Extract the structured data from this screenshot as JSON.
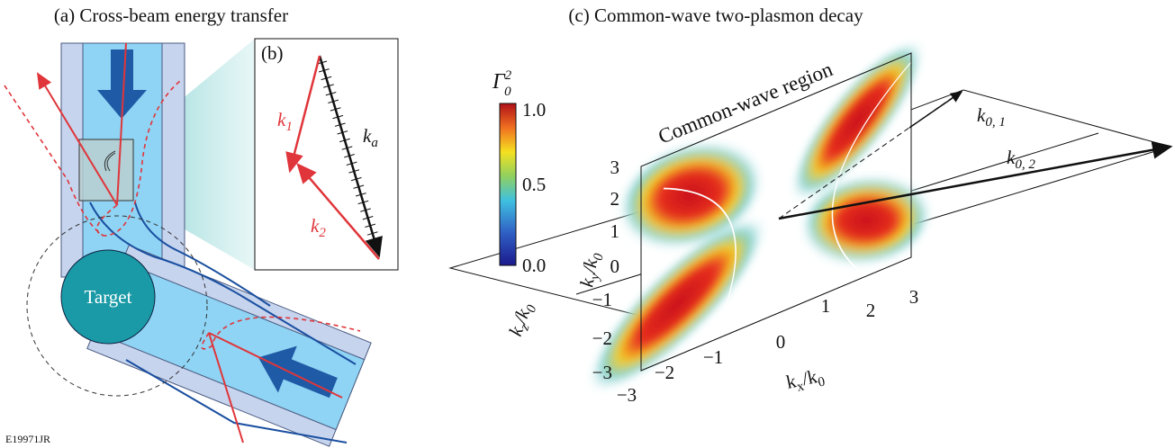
{
  "panel_a": {
    "title": "(a) Cross-beam energy transfer",
    "target": "Target"
  },
  "panel_b": {
    "label": "(b)",
    "k1": {
      "base": "k",
      "sub": "1"
    },
    "k2": {
      "base": "k",
      "sub": "2"
    },
    "ka": {
      "base": "k",
      "sub": "a"
    }
  },
  "panel_c": {
    "title": "(c) Common-wave two-plasmon decay",
    "region": "Common-wave region",
    "colorbar": {
      "label": {
        "base": "Γ",
        "sub": "0",
        "sup": "2"
      },
      "ticks": [
        "1.0",
        "0.5",
        "0.0"
      ]
    },
    "k01": {
      "base": "k",
      "sub": "0, 1"
    },
    "k02": {
      "base": "k",
      "sub": "0, 2"
    },
    "y_axis": {
      "base": "k",
      "sub": "y",
      "den": "/k",
      "den_sub": "0"
    },
    "z_axis": {
      "base": "k",
      "sub": "z",
      "den": "/k",
      "den_sub": "0"
    },
    "x_axis": {
      "base": "k",
      "sub": "x",
      "den": "/k",
      "den_sub": "0"
    },
    "y_ticks": [
      "3",
      "2",
      "1",
      "0",
      "−1",
      "−2",
      "−3"
    ],
    "x_ticks": [
      "−3",
      "−2",
      "−1",
      "0",
      "1",
      "2",
      "3"
    ]
  },
  "figure_id": "E19971JR"
}
